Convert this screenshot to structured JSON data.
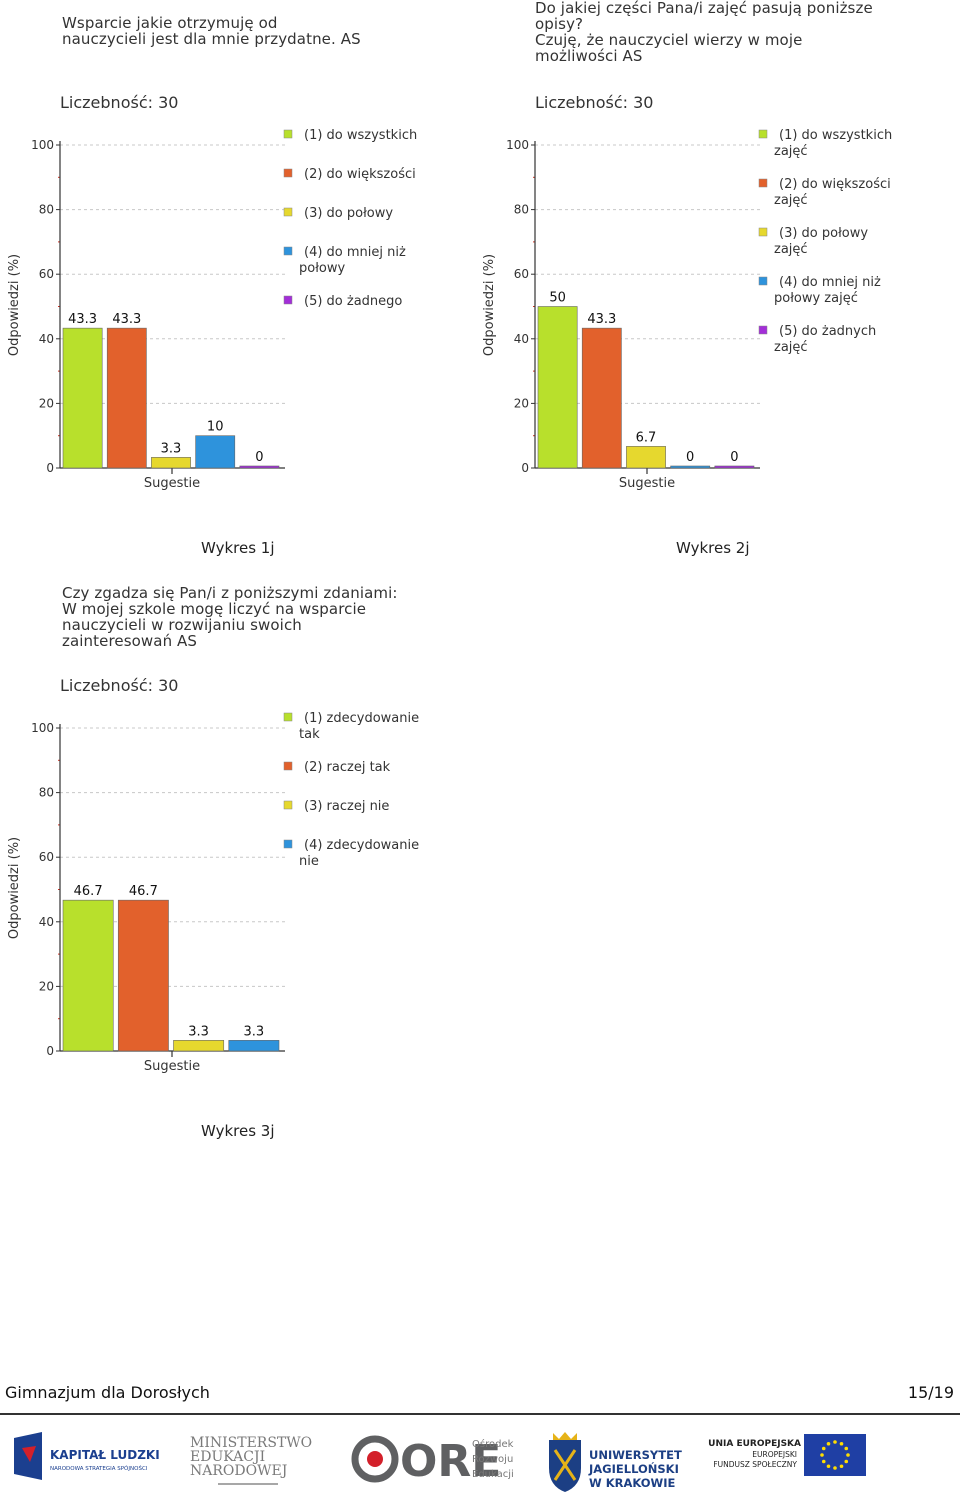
{
  "chart_data": [
    {
      "type": "bar",
      "title": "Wsparcie jakie  otrzymuję od\nnauczycieli jest dla mnie przydatne. AS",
      "count_label": "Liczebność: 30",
      "xlabel": "Sugestie",
      "ylabel": "Odpowiedzi (%)",
      "ylim": [
        0,
        100
      ],
      "yticks": [
        "0",
        "20",
        "40",
        "60",
        "80",
        "100"
      ],
      "grid": true,
      "legend_position": "right",
      "categories": [
        "(1) do wszystkich",
        "(2) do większości",
        "(3) do połowy",
        "(4) do mniej niż\npołowy",
        "(5) do żadnego"
      ],
      "values": [
        43.3,
        43.3,
        3.3,
        10,
        0
      ],
      "value_labels": [
        "43.3",
        "43.3",
        "3.3",
        "10",
        "0"
      ],
      "colors": [
        "#b8e02c",
        "#e2612c",
        "#e6d82e",
        "#2e93dc",
        "#a32ed8"
      ],
      "caption": "Wykres 1j"
    },
    {
      "type": "bar",
      "title": "Do jakiej części Pana/i zajęć pasują poniższe\nopisy?\nCzuję, że nauczyciel wierzy w moje\nmożliwości AS",
      "count_label": "Liczebność: 30",
      "xlabel": "Sugestie",
      "ylabel": "Odpowiedzi (%)",
      "ylim": [
        0,
        100
      ],
      "yticks": [
        "0",
        "20",
        "40",
        "60",
        "80",
        "100"
      ],
      "grid": true,
      "legend_position": "right",
      "categories": [
        "(1) do wszystkich\nzajęć",
        "(2) do większości\nzajęć",
        "(3) do połowy\nzajęć",
        "(4) do mniej niż\npołowy zajęć",
        "(5) do żadnych\nzajęć"
      ],
      "values": [
        50,
        43.3,
        6.7,
        0,
        0
      ],
      "value_labels": [
        "50",
        "43.3",
        "6.7",
        "0",
        "0"
      ],
      "colors": [
        "#b8e02c",
        "#e2612c",
        "#e6d82e",
        "#2e93dc",
        "#a32ed8"
      ],
      "caption": "Wykres 2j"
    },
    {
      "type": "bar",
      "title": "Czy zgadza się Pan/i z poniższymi zdaniami:\nW mojej szkole mogę liczyć na wsparcie\nnauczycieli w rozwijaniu swoich\nzainteresowań AS",
      "count_label": "Liczebność: 30",
      "xlabel": "Sugestie",
      "ylabel": "Odpowiedzi (%)",
      "ylim": [
        0,
        100
      ],
      "yticks": [
        "0",
        "20",
        "40",
        "60",
        "80",
        "100"
      ],
      "grid": true,
      "legend_position": "right",
      "categories": [
        "(1) zdecydowanie\ntak",
        "(2) raczej tak",
        "(3) raczej nie",
        "(4) zdecydowanie\nnie"
      ],
      "values": [
        46.7,
        46.7,
        3.3,
        3.3
      ],
      "value_labels": [
        "46.7",
        "46.7",
        "3.3",
        "3.3"
      ],
      "colors": [
        "#b8e02c",
        "#e2612c",
        "#e6d82e",
        "#2e93dc"
      ],
      "caption": "Wykres 3j"
    }
  ],
  "footer": {
    "left": "Gimnazjum dla Dorosłych",
    "right": "15/19"
  },
  "logos": {
    "kapital_title": "KAPITAŁ LUDZKI",
    "kapital_sub": "NARODOWA STRATEGIA SPÓJNOŚCI",
    "men_line1": "MINISTERSTWO",
    "men_line2": "EDUKACJI",
    "men_line3": "NARODOWEJ",
    "ore_big": "ORE",
    "ore_line1": "Ośrodek",
    "ore_line2": "Rozwoju",
    "ore_line3": "Edukacji",
    "uj_line1": "UNIWERSYTET",
    "uj_line2": "JAGIELLOŃSKI",
    "uj_line3": "W KRAKOWIE",
    "ue_line1": "UNIA EUROPEJSKA",
    "ue_line2": "EUROPEJSKI",
    "ue_line3": "FUNDUSZ SPOŁECZNY",
    "colors": {
      "kapital_blue": "#1b3f8f",
      "kapital_red": "#d3202a",
      "ore_red": "#d3202a",
      "ore_grey": "#5f6062",
      "uj_blue": "#1c3f84",
      "uj_gold": "#e6b318",
      "eu_blue": "#1f3fa4",
      "eu_star": "#ffdd00"
    }
  }
}
